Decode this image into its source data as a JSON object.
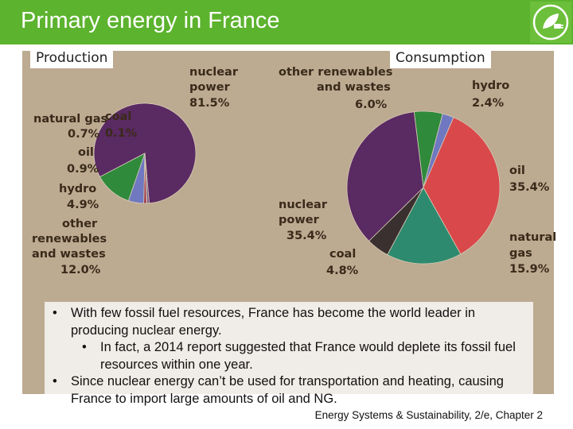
{
  "header": {
    "title": "Primary energy in France",
    "logo_icon": "energy-plug-leaf-icon",
    "colors": {
      "bar": "#5cb32e",
      "title_text": "#ffffff"
    }
  },
  "tabs": {
    "production": "Production",
    "consumption": "Consumption"
  },
  "chart_data": [
    {
      "type": "pie",
      "title": "Production",
      "slices": [
        {
          "name": "nuclear power",
          "value": 81.5,
          "label": "81.5%",
          "color": "#5a2a63"
        },
        {
          "name": "natural gas",
          "value": 0.7,
          "label": "0.7%",
          "color": "#7a5a8a"
        },
        {
          "name": "coal",
          "value": 0.1,
          "label": "0.1%",
          "color": "#3a3a3a"
        },
        {
          "name": "oil",
          "value": 0.9,
          "label": "0.9%",
          "color": "#a03a4a"
        },
        {
          "name": "hydro",
          "value": 4.9,
          "label": "4.9%",
          "color": "#6f78c0"
        },
        {
          "name": "other renewables and wastes",
          "value": 12.0,
          "label": "12.0%",
          "color": "#2f8a3c"
        }
      ],
      "text_labels": {
        "nuclear": [
          "nuclear",
          "power",
          "81.5%"
        ],
        "natural_gas": [
          "natural gas",
          "0.7%"
        ],
        "coal": [
          "coal",
          "0.1%"
        ],
        "oil": [
          "oil",
          "0.9%"
        ],
        "hydro": [
          "hydro",
          "4.9%"
        ],
        "renewables": [
          "other",
          "renewables",
          "and wastes",
          "12.0%"
        ]
      }
    },
    {
      "type": "pie",
      "title": "Consumption",
      "slices": [
        {
          "name": "other renewables and wastes",
          "value": 6.0,
          "label": "6.0%",
          "color": "#2f8a3c"
        },
        {
          "name": "hydro",
          "value": 2.4,
          "label": "2.4%",
          "color": "#6f78c0"
        },
        {
          "name": "oil",
          "value": 35.4,
          "label": "35.4%",
          "color": "#d9484a"
        },
        {
          "name": "natural gas",
          "value": 15.9,
          "label": "15.9%",
          "color": "#2e8a6e"
        },
        {
          "name": "coal",
          "value": 4.8,
          "label": "4.8%",
          "color": "#3b3030"
        },
        {
          "name": "nuclear power",
          "value": 35.4,
          "label": "35.4%",
          "color": "#5a2a63"
        }
      ],
      "text_labels": {
        "renewables": [
          "other renewables",
          "and wastes",
          "6.0%"
        ],
        "hydro": [
          "hydro",
          "2.4%"
        ],
        "oil": [
          "oil",
          "35.4%"
        ],
        "natural_gas": [
          "natural",
          "gas",
          "15.9%"
        ],
        "coal": [
          "coal",
          "4.8%"
        ],
        "nuclear": [
          "nuclear",
          "power",
          "35.4%"
        ]
      }
    }
  ],
  "notes": {
    "bullet1": "With few fossil fuel resources, France has become the world leader in producing nuclear energy.",
    "bullet1_sub": "In fact, a 2014 report suggested that France would deplete its fossil fuel resources within one year.",
    "bullet2": "Since nuclear energy can’t be used for transportation and heating, causing France to import large amounts of oil and NG.",
    "bullet_char": "•"
  },
  "footer": {
    "source": "Energy Systems & Sustainability, 2/e, Chapter 2"
  }
}
